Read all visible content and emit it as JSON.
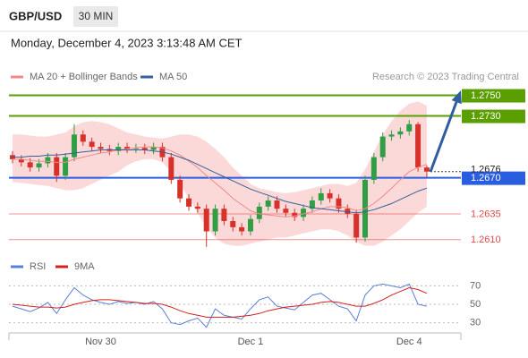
{
  "header": {
    "symbol": "GBP/USD",
    "interval": "30 MIN",
    "timestamp": "Monday, December 4, 2023 3:13:48 AM CET"
  },
  "chart_data": [
    {
      "type": "candlestick",
      "credit": "Research © 2023 Trading Central",
      "categories": [
        null,
        null,
        null,
        null,
        null,
        null,
        null,
        null,
        null,
        null,
        "Nov 30",
        null,
        null,
        null,
        null,
        null,
        null,
        null,
        null,
        null,
        null,
        null,
        null,
        null,
        null,
        null,
        null,
        "Dec 1",
        null,
        null,
        null,
        null,
        null,
        null,
        null,
        null,
        null,
        null,
        null,
        null,
        null,
        null,
        null,
        null,
        null,
        "Dec 4",
        null,
        null
      ],
      "open": [
        1.2692,
        1.2688,
        1.2685,
        1.268,
        1.2684,
        1.269,
        1.2672,
        1.269,
        1.2712,
        1.2705,
        1.27,
        1.2698,
        1.2696,
        1.27,
        1.2698,
        1.2699,
        1.2697,
        1.27,
        1.269,
        1.2668,
        1.265,
        1.2642,
        1.264,
        1.2618,
        1.264,
        1.2628,
        1.2622,
        1.2618,
        1.263,
        1.2642,
        1.2648,
        1.264,
        1.2636,
        1.2632,
        1.264,
        1.2648,
        1.2655,
        1.265,
        1.264,
        1.2635,
        1.2612,
        1.2668,
        1.269,
        1.271,
        1.2712,
        1.2715,
        1.2722,
        1.268
      ],
      "high": [
        1.2696,
        1.2692,
        1.2689,
        1.2688,
        1.2694,
        1.2694,
        1.2694,
        1.2722,
        1.2716,
        1.2709,
        1.2704,
        1.2702,
        1.2704,
        1.2704,
        1.2703,
        1.2703,
        1.2704,
        1.2704,
        1.2694,
        1.2672,
        1.2654,
        1.2646,
        1.2644,
        1.2644,
        1.2644,
        1.2632,
        1.2626,
        1.2634,
        1.2646,
        1.2652,
        1.2652,
        1.2644,
        1.264,
        1.2644,
        1.2652,
        1.266,
        1.2659,
        1.2654,
        1.2644,
        1.2639,
        1.2672,
        1.2694,
        1.2714,
        1.2716,
        1.2719,
        1.2726,
        1.2724,
        1.2682
      ],
      "low": [
        1.2684,
        1.2681,
        1.2676,
        1.2676,
        1.268,
        1.2666,
        1.2668,
        1.2686,
        1.2701,
        1.2696,
        1.2694,
        1.2692,
        1.2692,
        1.2694,
        1.2694,
        1.2693,
        1.2693,
        1.2686,
        1.2664,
        1.2646,
        1.2638,
        1.2636,
        1.2603,
        1.2614,
        1.2624,
        1.2618,
        1.2614,
        1.2614,
        1.2626,
        1.2638,
        1.2636,
        1.2632,
        1.2628,
        1.2628,
        1.2636,
        1.2644,
        1.2646,
        1.2636,
        1.2631,
        1.2607,
        1.2608,
        1.2664,
        1.2686,
        1.2706,
        1.2708,
        1.2711,
        1.2676,
        1.267
      ],
      "close": [
        1.2688,
        1.2685,
        1.268,
        1.2684,
        1.269,
        1.2672,
        1.269,
        1.2712,
        1.2705,
        1.27,
        1.2698,
        1.2696,
        1.27,
        1.2698,
        1.2699,
        1.2697,
        1.27,
        1.269,
        1.2668,
        1.265,
        1.2642,
        1.264,
        1.2618,
        1.264,
        1.2628,
        1.2622,
        1.2618,
        1.263,
        1.2642,
        1.2648,
        1.264,
        1.2636,
        1.2632,
        1.264,
        1.2648,
        1.2655,
        1.265,
        1.264,
        1.2635,
        1.2612,
        1.2668,
        1.269,
        1.271,
        1.2712,
        1.2715,
        1.2722,
        1.268,
        1.2676
      ],
      "up_color": "#2f9e44",
      "down_color": "#d6312b",
      "series": [
        {
          "name": "MA 20 + Bollinger Bands",
          "color": "#f08a8a",
          "band_color": "#fcd9d9",
          "values": [
            1.2688,
            1.2688,
            1.2687,
            1.2686,
            1.2686,
            1.2685,
            1.2685,
            1.2688,
            1.269,
            1.2692,
            1.2694,
            1.2695,
            1.2697,
            1.2698,
            1.2699,
            1.27,
            1.27,
            1.2699,
            1.2696,
            1.2692,
            1.2686,
            1.268,
            1.2672,
            1.2665,
            1.2658,
            1.265,
            1.2644,
            1.2638,
            1.2635,
            1.2634,
            1.2633,
            1.2632,
            1.2633,
            1.2635,
            1.2637,
            1.264,
            1.2642,
            1.2642,
            1.2641,
            1.2638,
            1.264,
            1.2645,
            1.2652,
            1.266,
            1.2668,
            1.2676,
            1.268,
            1.2683
          ],
          "upper": [
            1.2712,
            1.2712,
            1.2711,
            1.271,
            1.271,
            1.2712,
            1.2714,
            1.272,
            1.2724,
            1.2725,
            1.2724,
            1.2722,
            1.2718,
            1.2714,
            1.2712,
            1.271,
            1.2709,
            1.2708,
            1.271,
            1.2712,
            1.2712,
            1.271,
            1.2705,
            1.2698,
            1.269,
            1.268,
            1.2672,
            1.2664,
            1.266,
            1.2658,
            1.2656,
            1.2655,
            1.2656,
            1.2658,
            1.266,
            1.2662,
            1.2664,
            1.2664,
            1.2662,
            1.2665,
            1.2678,
            1.2695,
            1.2712,
            1.2725,
            1.2735,
            1.2742,
            1.2744,
            1.274
          ],
          "lower": [
            1.2666,
            1.2665,
            1.2664,
            1.2663,
            1.2662,
            1.266,
            1.2658,
            1.2658,
            1.266,
            1.2664,
            1.2668,
            1.2672,
            1.2676,
            1.2682,
            1.2686,
            1.2688,
            1.2688,
            1.2685,
            1.2676,
            1.2664,
            1.265,
            1.2636,
            1.2622,
            1.2612,
            1.2606,
            1.2604,
            1.2604,
            1.2606,
            1.2608,
            1.261,
            1.2612,
            1.2612,
            1.2614,
            1.2616,
            1.2618,
            1.262,
            1.262,
            1.2618,
            1.2614,
            1.2608,
            1.2604,
            1.2604,
            1.2608,
            1.2614,
            1.262,
            1.2628,
            1.2636,
            1.2642
          ]
        },
        {
          "name": "MA 50",
          "color": "#36609a",
          "values": [
            1.269,
            1.269,
            1.2691,
            1.2691,
            1.2692,
            1.2692,
            1.2693,
            1.2694,
            1.2695,
            1.2696,
            1.2697,
            1.2697,
            1.2697,
            1.2697,
            1.2697,
            1.2697,
            1.2696,
            1.2695,
            1.2693,
            1.269,
            1.2687,
            1.2683,
            1.2679,
            1.2675,
            1.2671,
            1.2667,
            1.2663,
            1.2659,
            1.2656,
            1.2653,
            1.265,
            1.2647,
            1.2645,
            1.2643,
            1.2641,
            1.264,
            1.2639,
            1.2638,
            1.2637,
            1.2636,
            1.2637,
            1.2639,
            1.2642,
            1.2645,
            1.2649,
            1.2653,
            1.2657,
            1.266
          ]
        }
      ],
      "levels": [
        {
          "value": 1.275,
          "label": "1.2750",
          "color": "#5a9e00",
          "label_style": "box"
        },
        {
          "value": 1.273,
          "label": "1.2730",
          "color": "#5a9e00",
          "label_style": "box"
        },
        {
          "value": 1.267,
          "label": "1.2670",
          "color": "#2a5ee0",
          "label_style": "box"
        },
        {
          "value": 1.2635,
          "label": "1.2635",
          "color": "#e04a4a",
          "label_style": "text"
        },
        {
          "value": 1.261,
          "label": "1.2610",
          "color": "#e04a4a",
          "label_style": "text"
        }
      ],
      "last_price": 1.2676,
      "ylim": [
        1.2595,
        1.276
      ]
    },
    {
      "type": "line",
      "series": [
        {
          "name": "RSI",
          "color": "#5b7fd6",
          "values": [
            48,
            45,
            42,
            46,
            52,
            40,
            55,
            68,
            60,
            55,
            52,
            50,
            53,
            51,
            52,
            50,
            53,
            45,
            30,
            28,
            32,
            35,
            25,
            45,
            38,
            36,
            34,
            45,
            55,
            58,
            48,
            46,
            44,
            52,
            60,
            62,
            55,
            48,
            45,
            32,
            60,
            70,
            72,
            70,
            68,
            72,
            50,
            48
          ]
        },
        {
          "name": "9MA",
          "color": "#d42020",
          "values": [
            50,
            49,
            48,
            47,
            47,
            46,
            47,
            50,
            52,
            54,
            55,
            55,
            54,
            53,
            52,
            51,
            51,
            50,
            47,
            43,
            40,
            38,
            36,
            36,
            36,
            36,
            37,
            38,
            40,
            43,
            45,
            47,
            48,
            49,
            50,
            52,
            53,
            52,
            50,
            48,
            48,
            51,
            55,
            60,
            64,
            68,
            66,
            62
          ]
        }
      ],
      "ylim": [
        15,
        85
      ],
      "yticks": [
        30,
        50,
        70
      ]
    }
  ]
}
